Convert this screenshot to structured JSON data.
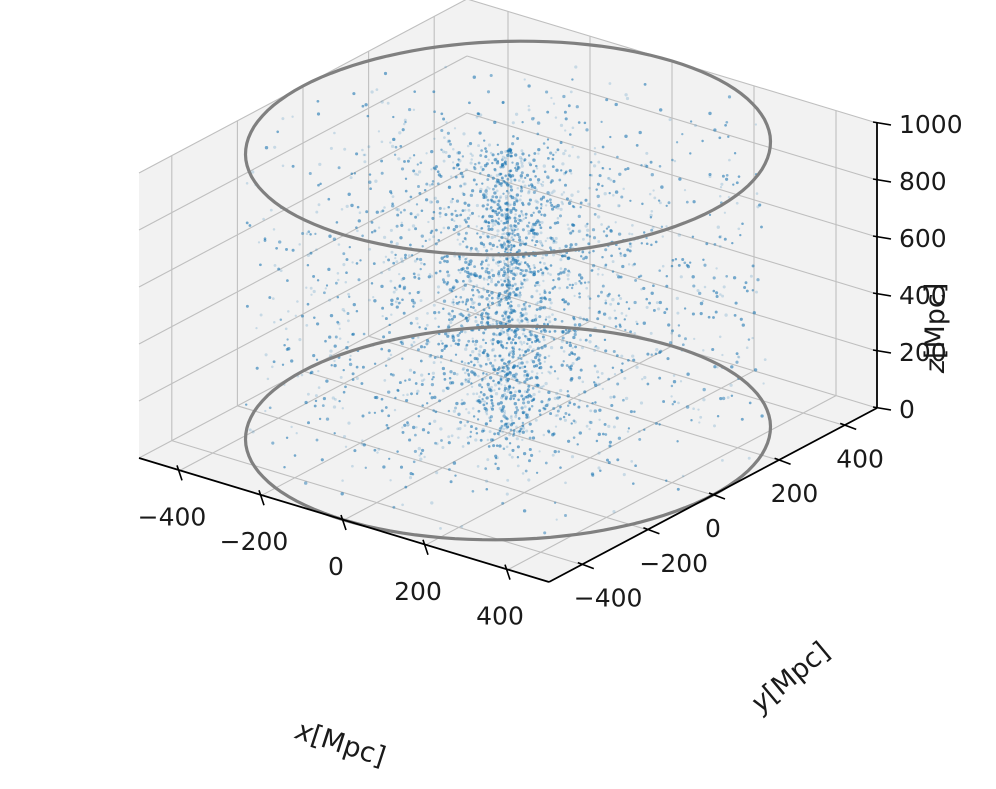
{
  "chart_data": {
    "type": "scatter",
    "projection": "3d",
    "title": "",
    "series": [
      {
        "marker_color": "#1f77b4",
        "marker_alpha": 0.2,
        "approx_point_count": 8000,
        "distribution": "points filling a vertical cylinder of radius 500 Mpc and height 1000 Mpc, densest near the axis"
      }
    ],
    "circles": [
      {
        "center_x": 0,
        "center_y": 0,
        "z": 0,
        "radius": 500,
        "color": "#808080"
      },
      {
        "center_x": 0,
        "center_y": 0,
        "z": 1000,
        "radius": 500,
        "color": "#808080"
      }
    ],
    "axes": {
      "x": {
        "label_var": "x",
        "label_unit": "[Mpc]",
        "ticks": [
          -400,
          -200,
          0,
          200,
          400
        ],
        "range": [
          -500,
          500
        ]
      },
      "y": {
        "label_var": "y",
        "label_unit": "[Mpc]",
        "ticks": [
          -400,
          -200,
          0,
          200,
          400
        ],
        "range": [
          -500,
          500
        ]
      },
      "z": {
        "label_var": "z",
        "label_unit": "[Mpc]",
        "ticks": [
          0,
          200,
          400,
          600,
          800,
          1000
        ],
        "range": [
          0,
          1000
        ]
      }
    },
    "grid": true,
    "pane_color": "#f2f2f2",
    "grid_color": "#bfbfbf"
  }
}
